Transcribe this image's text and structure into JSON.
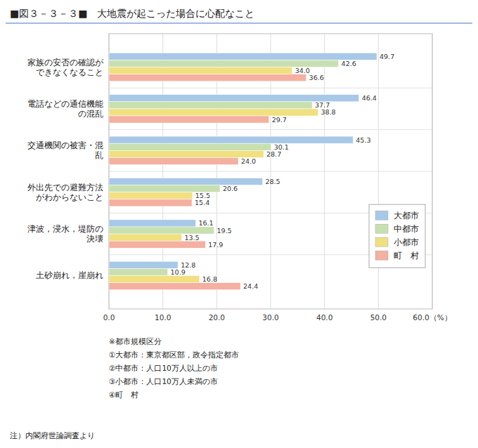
{
  "chart_data": {
    "type": "bar",
    "orientation": "horizontal",
    "title": "■図３－３－３■　大地震が起こった場合に心配なこと",
    "categories": [
      "家族の安否の確認が\nできなくなること",
      "電話などの通信機能\nの混乱",
      "交通機関の被害・混\n乱",
      "外出先での避難方法\nがわからないこと",
      "津波，浸水，堤防の\n決壊",
      "土砂崩れ，崖崩れ"
    ],
    "series": [
      {
        "name": "大都市",
        "color": "#a8c8e8",
        "values": [
          49.7,
          46.4,
          45.3,
          28.5,
          16.1,
          12.8
        ]
      },
      {
        "name": "中都市",
        "color": "#c8e0b0",
        "values": [
          42.6,
          37.7,
          30.1,
          20.6,
          19.5,
          10.9
        ]
      },
      {
        "name": "小都市",
        "color": "#f0e080",
        "values": [
          34.0,
          38.8,
          28.7,
          15.5,
          13.5,
          16.8
        ],
        "value_labels": [
          "34.0",
          "38.8",
          "28.7",
          "15.5",
          "13.5",
          "16.8"
        ]
      },
      {
        "name": "町　村",
        "color": "#f4b0a0",
        "values": [
          36.6,
          29.7,
          24.0,
          15.4,
          17.9,
          24.4
        ],
        "value_labels": [
          "36.6",
          "29.7",
          "24.0",
          "15.4",
          "17.9",
          "24.4"
        ]
      }
    ],
    "xlim": [
      0,
      60
    ],
    "xticks": [
      {
        "value": 0,
        "label": "0.0"
      },
      {
        "value": 10,
        "label": "10.0"
      },
      {
        "value": 20,
        "label": "20.0"
      },
      {
        "value": 30,
        "label": "30.0"
      },
      {
        "value": 40,
        "label": "40.0"
      },
      {
        "value": 50,
        "label": "50.0"
      },
      {
        "value": 60,
        "label": "60.0（%）"
      }
    ],
    "grid": true,
    "legend": "lower right",
    "data_labels": true,
    "annotations": [
      "※都市規模区分",
      "①大都市：東京都区部，政令指定都市",
      "②中都市：人口10万人以上の市",
      "③小都市：人口10万人未満の市",
      "④町　村",
      "注）内閣府世論調査より"
    ]
  }
}
